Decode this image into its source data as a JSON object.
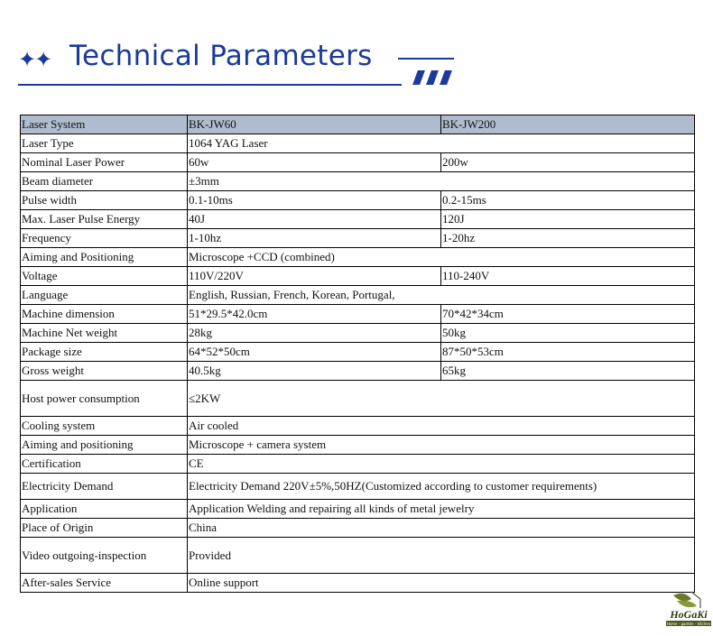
{
  "header": {
    "title": "Technical Parameters",
    "stars_icon": "four-point-star-icon",
    "accent_color": "#1a3a9c"
  },
  "table": {
    "header_row": {
      "label": "Laser System",
      "col1": "BK-JW60",
      "col2": "BK-JW200"
    },
    "rows": [
      {
        "label": "Laser Type",
        "col1": "1064 YAG Laser",
        "col2": "",
        "span": true
      },
      {
        "label": "Nominal Laser Power",
        "col1": "60w",
        "col2": "200w"
      },
      {
        "label": "Beam diameter",
        "col1": "±3mm",
        "col2": "",
        "span": true
      },
      {
        "label": "Pulse width",
        "col1": "0.1-10ms",
        "col2": "0.2-15ms"
      },
      {
        "label": "Max. Laser Pulse Energy",
        "col1": "40J",
        "col2": "120J"
      },
      {
        "label": "Frequency",
        "col1": "1-10hz",
        "col2": "1-20hz"
      },
      {
        "label": "Aiming and Positioning",
        "col1": "Microscope +CCD (combined)",
        "col2": "",
        "span": true
      },
      {
        "label": "Voltage",
        "col1": "110V/220V",
        "col2": "110-240V"
      },
      {
        "label": "Language",
        "col1": "English, Russian, French, Korean, Portugal,",
        "col2": "",
        "span": true
      },
      {
        "label": "Machine dimension",
        "col1": "51*29.5*42.0cm",
        "col2": "70*42*34cm"
      },
      {
        "label": "Machine Net weight",
        "col1": "28kg",
        "col2": "50kg"
      },
      {
        "label": "Package size",
        "col1": "64*52*50cm",
        "col2": "87*50*53cm"
      },
      {
        "label": "Gross weight",
        "col1": "40.5kg",
        "col2": "65kg"
      },
      {
        "label": "Host power consumption",
        "col1": "≤2KW",
        "col2": "",
        "span": true,
        "tall": true
      },
      {
        "label": "Cooling system",
        "col1": "Air cooled",
        "col2": "",
        "span": true
      },
      {
        "label": "Aiming and positioning",
        "col1": "Microscope + camera system",
        "col2": "",
        "span": true
      },
      {
        "label": "Certification",
        "col1": "CE",
        "col2": "",
        "span": true
      },
      {
        "label": "Electricity Demand",
        "col1": "Electricity Demand 220V±5%,50HZ(Customized according to customer requirements)",
        "col2": "",
        "span": true,
        "mid": true
      },
      {
        "label": "Application",
        "col1": "Application Welding and repairing all kinds of metal jewelry",
        "col2": "",
        "span": true
      },
      {
        "label": "Place of Origin",
        "col1": "China",
        "col2": "",
        "span": true
      },
      {
        "label": "Video outgoing-inspection",
        "col1": "Provided",
        "col2": "",
        "span": true,
        "tall": true
      },
      {
        "label": "After-sales Service",
        "col1": "Online support",
        "col2": "",
        "span": true
      }
    ]
  },
  "logo": {
    "brand": "HoGaKi",
    "tagline": "Home - garden - kitchen"
  }
}
